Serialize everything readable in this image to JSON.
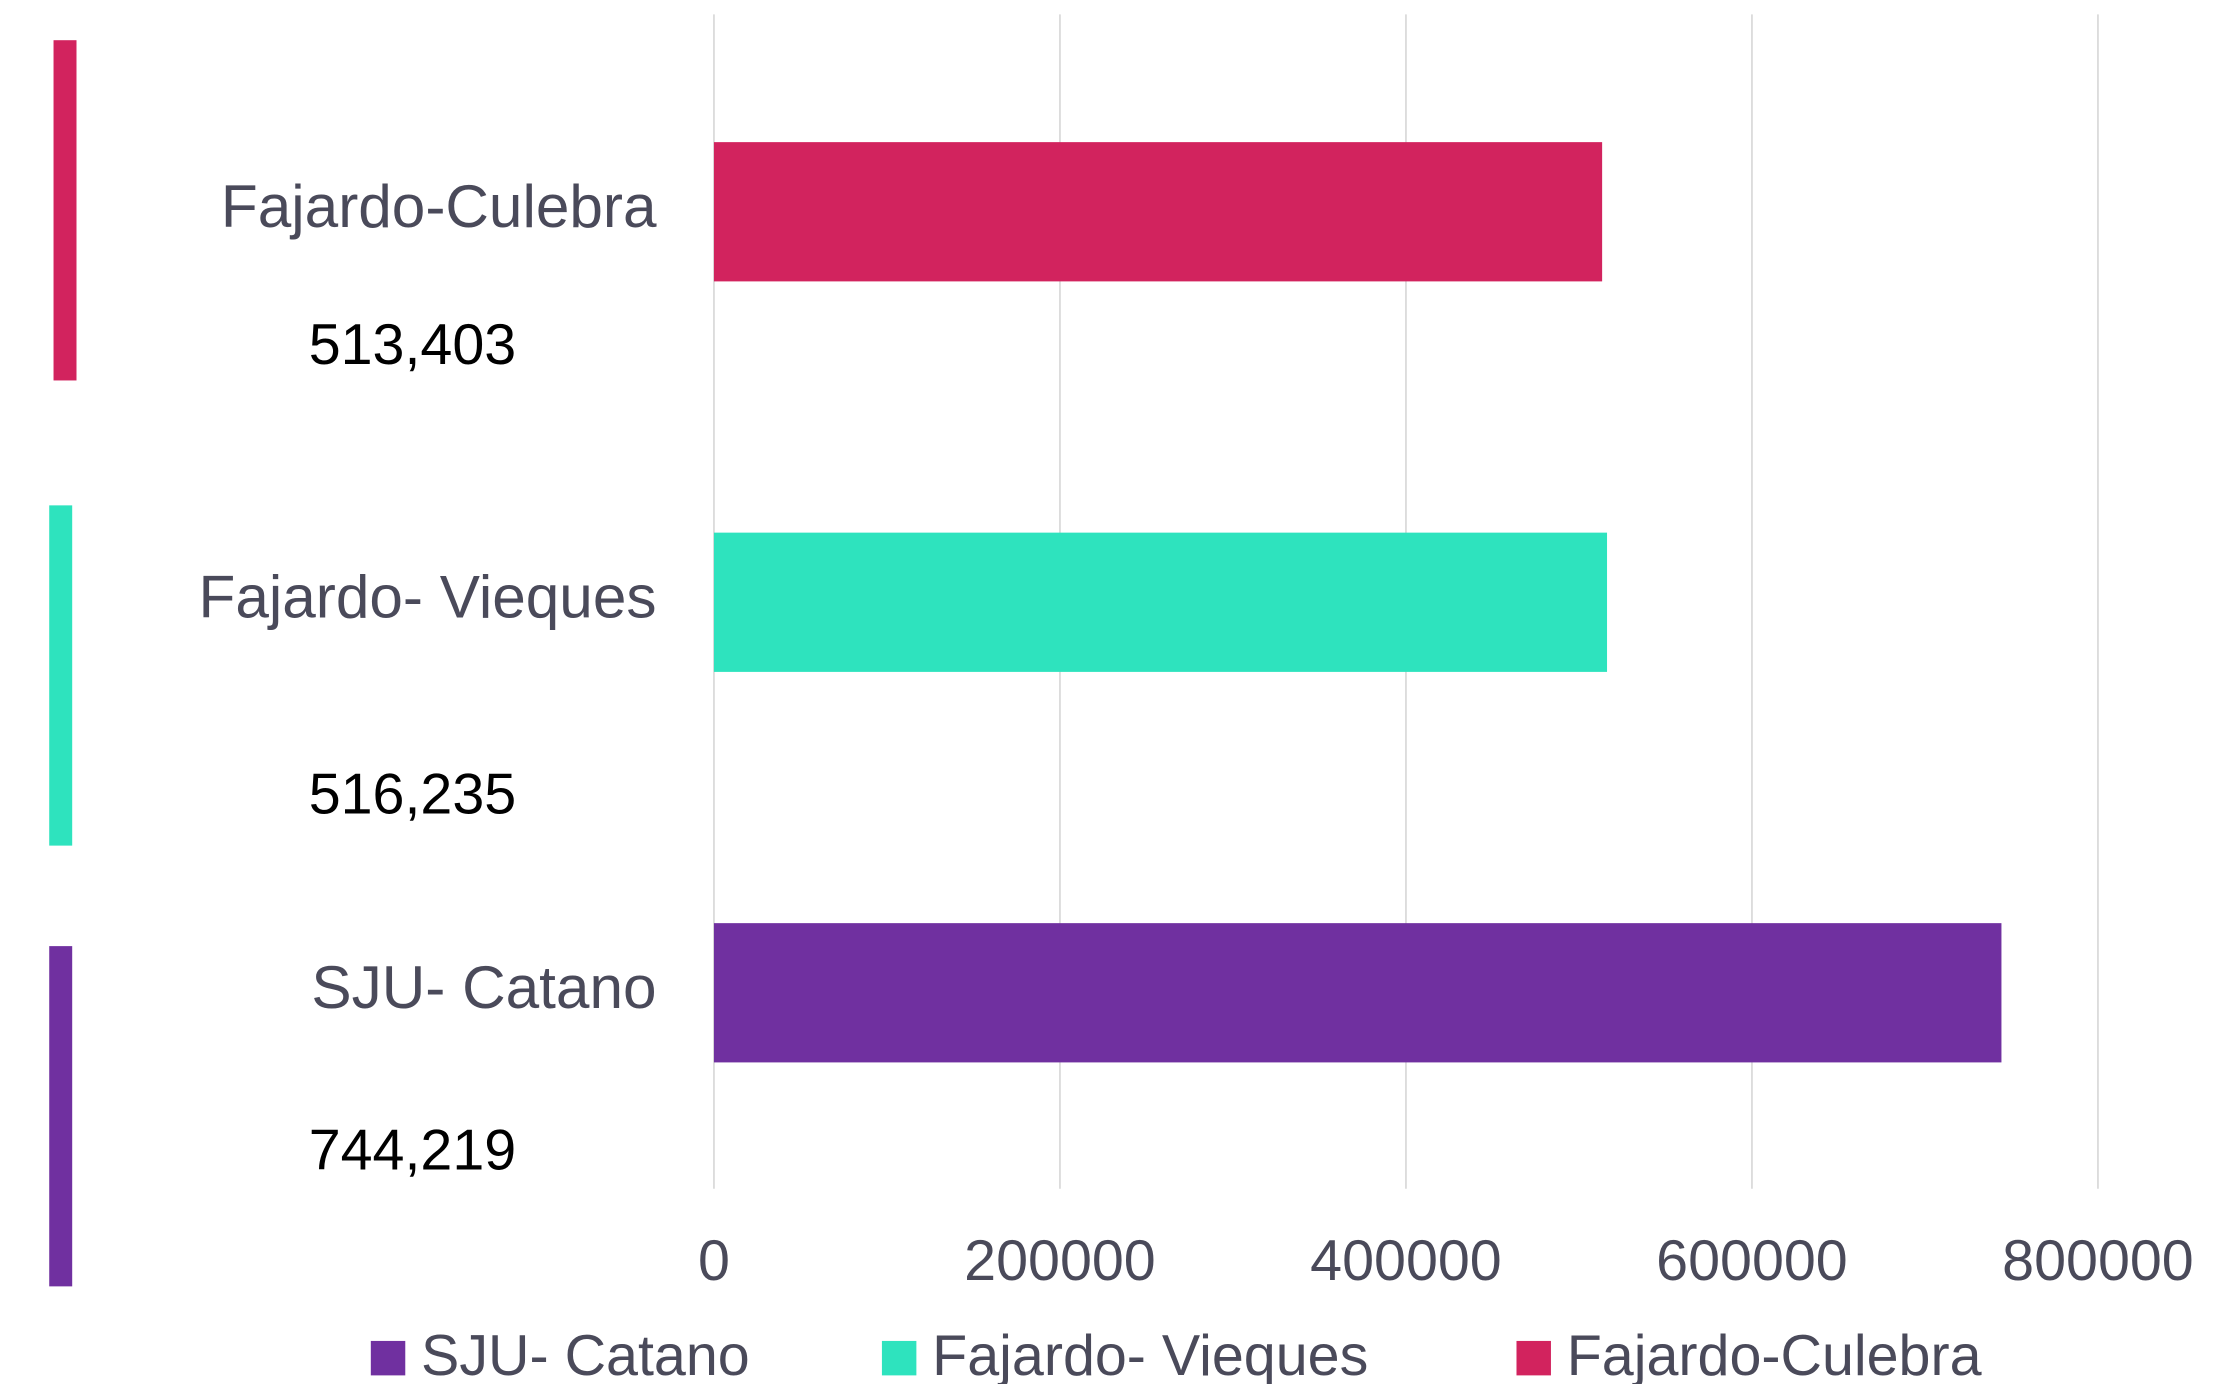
{
  "chart_data": {
    "type": "bar",
    "orientation": "horizontal",
    "series": [
      {
        "name": "SJU- Catano",
        "color": "#7030a0",
        "values": [
          744219
        ],
        "value_labels": [
          "744,219"
        ]
      },
      {
        "name": "Fajardo- Vieques",
        "color": "#2ee3be",
        "values": [
          516235
        ],
        "value_labels": [
          "516,235"
        ]
      },
      {
        "name": "Fajardo-Culebra",
        "color": "#d2235e",
        "values": [
          513403
        ],
        "value_labels": [
          "513,403"
        ]
      }
    ],
    "xlim": [
      0,
      800000
    ],
    "xticks": [
      0,
      200000,
      400000,
      600000,
      800000
    ],
    "grid": true,
    "legend": "bottom"
  }
}
